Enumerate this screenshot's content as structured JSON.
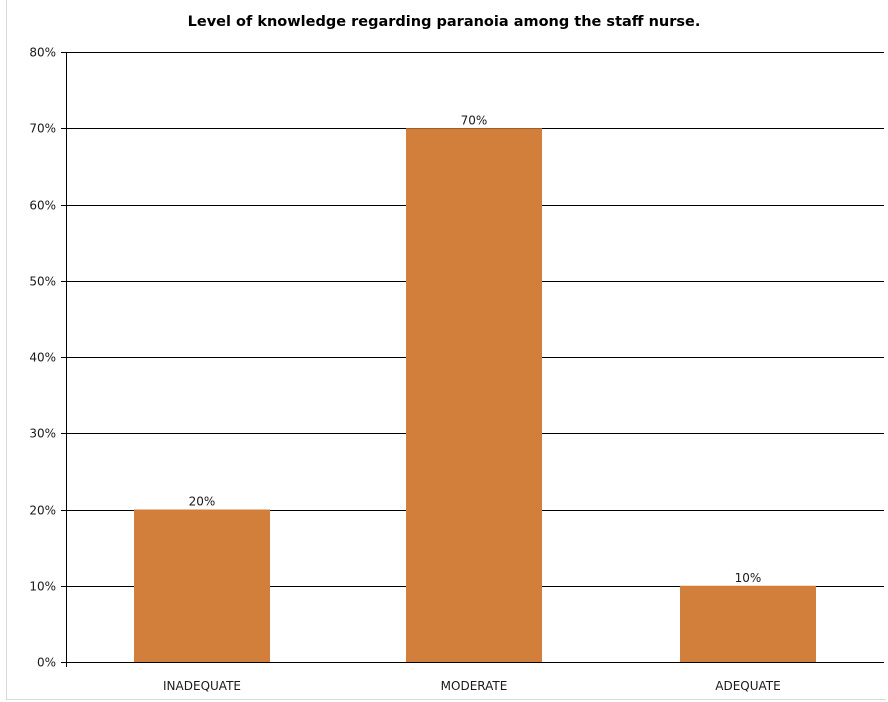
{
  "chart_data": {
    "type": "bar",
    "title": "Level of knowledge regarding paranoia among the staff nurse.",
    "xlabel": "",
    "ylabel": "",
    "categories": [
      "INADEQUATE",
      "MODERATE",
      "ADEQUATE"
    ],
    "values": [
      20,
      70,
      10
    ],
    "value_labels": [
      "20%",
      "70%",
      "10%"
    ],
    "ylim": [
      0,
      80
    ],
    "yticks": [
      0,
      10,
      20,
      30,
      40,
      50,
      60,
      70,
      80
    ],
    "ytick_labels": [
      "0%",
      "10%",
      "20%",
      "30%",
      "40%",
      "50%",
      "60%",
      "70%",
      "80%"
    ],
    "grid": true,
    "legend": "none",
    "colors": {
      "bar": "#d27f3c",
      "gridline": "#000000"
    }
  }
}
